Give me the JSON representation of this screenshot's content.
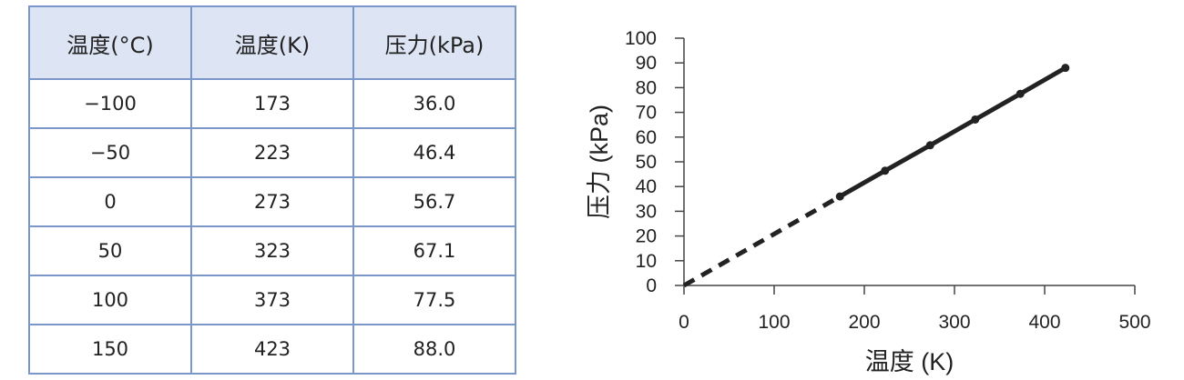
{
  "table": {
    "headers": [
      "温度(°C)",
      "温度(K)",
      "压力(kPa)"
    ],
    "rows": [
      [
        "−100",
        "173",
        "36.0"
      ],
      [
        "−50",
        "223",
        "46.4"
      ],
      [
        "0",
        "273",
        "56.7"
      ],
      [
        "50",
        "323",
        "67.1"
      ],
      [
        "100",
        "373",
        "77.5"
      ],
      [
        "150",
        "423",
        "88.0"
      ]
    ]
  },
  "chart_data": {
    "type": "line",
    "xlabel": "温度 (K)",
    "ylabel": "压力 (kPa)",
    "xlim": [
      0,
      500
    ],
    "ylim": [
      0,
      100
    ],
    "xticks": [
      0,
      100,
      200,
      300,
      400,
      500
    ],
    "yticks": [
      0,
      10,
      20,
      30,
      40,
      50,
      60,
      70,
      80,
      90,
      100
    ],
    "grid": false,
    "series": [
      {
        "x": [
          173,
          223,
          273,
          323,
          373,
          423
        ],
        "y": [
          36.0,
          46.4,
          56.7,
          67.1,
          77.5,
          88.0
        ],
        "color": "#222222",
        "markers": true
      }
    ],
    "extrapolation": {
      "x": [
        0,
        173
      ],
      "y": [
        0,
        36.0
      ],
      "style": "dashed",
      "color": "#222222"
    }
  }
}
